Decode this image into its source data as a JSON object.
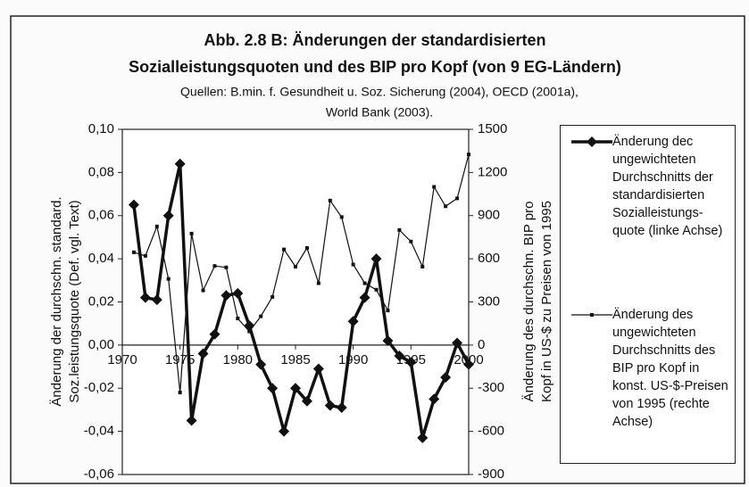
{
  "chart_data": {
    "type": "line",
    "title": [
      "Abb. 2.8 B: Änderungen der standardisierten",
      "Sozialleistungsquoten und des BIP pro Kopf (von 9 EG-Ländern)"
    ],
    "subtitle": [
      "Quellen: B.min. f. Gesundheit u. Soz. Sicherung (2004), OECD (2001a),",
      "World Bank (2003)."
    ],
    "ylabel": [
      "Änderung der durchschn. standard.",
      "Soz.leistungsquote (Def. vgl. Text)"
    ],
    "y2label": [
      "Änderung des durchschn. BIP pro",
      "Kopf in US-$ zu Preisen von 1995"
    ],
    "x": [
      1971,
      1972,
      1973,
      1974,
      1975,
      1976,
      1977,
      1978,
      1979,
      1980,
      1981,
      1982,
      1983,
      1984,
      1985,
      1986,
      1987,
      1988,
      1989,
      1990,
      1991,
      1992,
      1993,
      1994,
      1995,
      1996,
      1997,
      1998,
      1999,
      2000
    ],
    "xlim": [
      1970,
      2000
    ],
    "xticks": [
      1970,
      1975,
      1980,
      1985,
      1990,
      1995,
      2000
    ],
    "ylim": [
      -0.06,
      0.1
    ],
    "yticks": [
      {
        "value": -0.06,
        "label": "-0,06"
      },
      {
        "value": -0.04,
        "label": "-0,04"
      },
      {
        "value": -0.02,
        "label": "-0,02"
      },
      {
        "value": 0,
        "label": "0,00"
      },
      {
        "value": 0.02,
        "label": "0,02"
      },
      {
        "value": 0.04,
        "label": "0,04"
      },
      {
        "value": 0.06,
        "label": "0,06"
      },
      {
        "value": 0.08,
        "label": "0,08"
      },
      {
        "value": 0.1,
        "label": "0,10"
      }
    ],
    "y2lim": [
      -900,
      1500
    ],
    "y2ticks": [
      -900,
      -600,
      -300,
      0,
      300,
      600,
      900,
      1200,
      1500
    ],
    "series": [
      {
        "name": "Änderung dec ungewichteten Durchschnitts der standardisierten Sozialleistungs-quote (linke Achse)",
        "color": "#111111",
        "axis": "y",
        "values": [
          0.065,
          0.022,
          0.021,
          0.06,
          0.084,
          -0.035,
          -0.004,
          0.005,
          0.023,
          0.024,
          0.009,
          -0.009,
          -0.02,
          -0.04,
          -0.02,
          -0.026,
          -0.011,
          -0.028,
          -0.029,
          0.011,
          0.022,
          0.04,
          0.002,
          -0.005,
          -0.008,
          -0.043,
          -0.025,
          -0.015,
          0.001,
          -0.009
        ]
      },
      {
        "name": "Änderung des ungewichteten Durchschnitts des BIP pro Kopf in konst. US-$-Preisen von 1995 (rechte Achse)",
        "color": "#111111",
        "axis": "y2",
        "values": [
          645,
          620,
          825,
          460,
          -330,
          775,
          380,
          550,
          540,
          185,
          95,
          200,
          335,
          665,
          545,
          675,
          430,
          1005,
          890,
          560,
          430,
          385,
          240,
          800,
          720,
          545,
          1100,
          965,
          1020,
          1325
        ]
      }
    ]
  }
}
